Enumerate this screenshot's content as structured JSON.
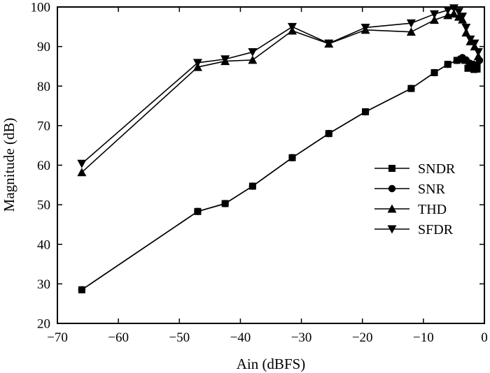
{
  "chart_data": {
    "type": "line",
    "title": "",
    "xlabel": "Ain (dBFS)",
    "ylabel": "Magnitude (dB)",
    "xlim": [
      -70,
      0
    ],
    "ylim": [
      20,
      100
    ],
    "xticks": [
      -70,
      -60,
      -50,
      -40,
      -30,
      -20,
      -10,
      0
    ],
    "yticks": [
      20,
      30,
      40,
      50,
      60,
      70,
      80,
      90,
      100
    ],
    "xtick_labels": [
      "−70",
      "−60",
      "−50",
      "−40",
      "−30",
      "−20",
      "−10",
      "0"
    ],
    "ytick_labels": [
      "20",
      "30",
      "40",
      "50",
      "60",
      "70",
      "80",
      "90",
      "100"
    ],
    "grid": false,
    "legend_position": "right",
    "series": [
      {
        "name": "SNDR",
        "marker": "square",
        "points": [
          [
            -66,
            28.5
          ],
          [
            -47,
            48.3
          ],
          [
            -42.5,
            50.3
          ],
          [
            -38,
            54.7
          ],
          [
            -31.5,
            61.9
          ],
          [
            -25.5,
            68
          ],
          [
            -19.5,
            73.5
          ],
          [
            -12,
            79.4
          ],
          [
            -8.2,
            83.4
          ],
          [
            -6,
            85.5
          ],
          [
            -4.5,
            86.5
          ],
          [
            -3.8,
            86.8
          ],
          [
            -3.2,
            86.5
          ],
          [
            -2.7,
            84.5
          ],
          [
            -2.2,
            84.8
          ],
          [
            -1.7,
            84.2
          ],
          [
            -1.2,
            84.3
          ]
        ]
      },
      {
        "name": "SNR",
        "marker": "circle",
        "points": [
          [
            -66,
            28.5
          ],
          [
            -47,
            48.3
          ],
          [
            -42.5,
            50.3
          ],
          [
            -38,
            54.7
          ],
          [
            -31.5,
            61.9
          ],
          [
            -25.5,
            68
          ],
          [
            -19.5,
            73.5
          ],
          [
            -12,
            79.4
          ],
          [
            -8.2,
            83.4
          ],
          [
            -6,
            85.5
          ],
          [
            -4.5,
            86.5
          ],
          [
            -3.6,
            87.2
          ],
          [
            -3,
            86.6
          ],
          [
            -2.4,
            85.8
          ],
          [
            -1.8,
            85.5
          ],
          [
            -1.2,
            85.3
          ],
          [
            -0.8,
            86.5
          ]
        ]
      },
      {
        "name": "THD",
        "marker": "triangle-up",
        "points": [
          [
            -66,
            58.2
          ],
          [
            -47,
            84.8
          ],
          [
            -42.5,
            86.3
          ],
          [
            -38,
            86.6
          ],
          [
            -31.5,
            94
          ],
          [
            -25.5,
            90.7
          ],
          [
            -19.5,
            94.2
          ],
          [
            -12,
            93.7
          ],
          [
            -8.2,
            96.7
          ],
          [
            -6,
            97.9
          ],
          [
            -5,
            98.3
          ],
          [
            -4.2,
            97.5
          ],
          [
            -3.6,
            96.8
          ],
          [
            -3,
            93.5
          ],
          [
            -2.3,
            91.3
          ],
          [
            -1.6,
            90
          ],
          [
            -1,
            87.5
          ]
        ]
      },
      {
        "name": "SFDR",
        "marker": "triangle-down",
        "points": [
          [
            -66,
            60.4
          ],
          [
            -47,
            85.9
          ],
          [
            -42.5,
            86.8
          ],
          [
            -38,
            88.6
          ],
          [
            -31.5,
            95
          ],
          [
            -25.5,
            90.8
          ],
          [
            -19.5,
            94.8
          ],
          [
            -12,
            95.9
          ],
          [
            -8.2,
            98.2
          ],
          [
            -6,
            99.2
          ],
          [
            -5,
            99.7
          ],
          [
            -4.2,
            98.8
          ],
          [
            -3.6,
            97.6
          ],
          [
            -3,
            94.8
          ],
          [
            -2.3,
            91.8
          ],
          [
            -1.6,
            90.8
          ],
          [
            -1,
            88.6
          ]
        ]
      }
    ]
  }
}
